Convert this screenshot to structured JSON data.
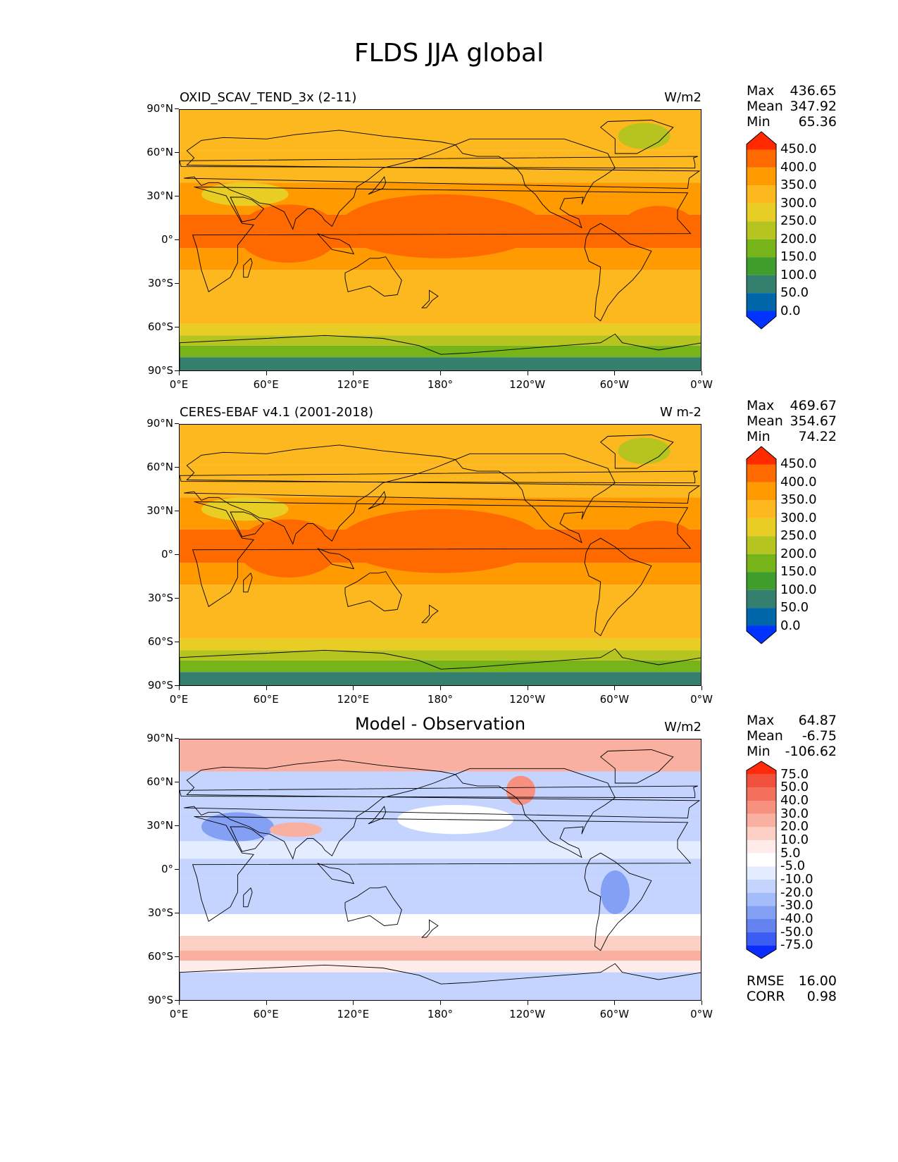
{
  "title": "FLDS JJA global",
  "panels": [
    {
      "left_label": "OXID_SCAV_TEND_3x (2-11)",
      "center_label": "",
      "units": "W/m2",
      "stats": [
        [
          "Max",
          "436.65"
        ],
        [
          "Mean",
          "347.92"
        ],
        [
          "Min",
          "65.36"
        ]
      ],
      "colorbar": {
        "labels": [
          "450.0",
          "400.0",
          "350.0",
          "300.0",
          "250.0",
          "200.0",
          "150.0",
          "100.0",
          "50.0",
          "0.0"
        ],
        "colors": [
          "#ff2a00",
          "#ff6a00",
          "#ff9a00",
          "#fdb71f",
          "#e8cd24",
          "#b6c41f",
          "#77b41a",
          "#3f9e2b",
          "#347f6d",
          "#0066aa",
          "#0033ff"
        ]
      }
    },
    {
      "left_label": "CERES-EBAF v4.1 (2001-2018)",
      "center_label": "",
      "units": "W m-2",
      "stats": [
        [
          "Max",
          "469.67"
        ],
        [
          "Mean",
          "354.67"
        ],
        [
          "Min",
          "74.22"
        ]
      ],
      "colorbar": {
        "labels": [
          "450.0",
          "400.0",
          "350.0",
          "300.0",
          "250.0",
          "200.0",
          "150.0",
          "100.0",
          "50.0",
          "0.0"
        ],
        "colors": [
          "#ff2a00",
          "#ff6a00",
          "#ff9a00",
          "#fdb71f",
          "#e8cd24",
          "#b6c41f",
          "#77b41a",
          "#3f9e2b",
          "#347f6d",
          "#0066aa",
          "#0033ff"
        ]
      }
    },
    {
      "left_label": "",
      "center_label": "Model - Observation",
      "units": "W/m2",
      "stats": [
        [
          "Max",
          "64.87"
        ],
        [
          "Mean",
          "-6.75"
        ],
        [
          "Min",
          "-106.62"
        ]
      ],
      "extra_stats": [
        [
          "RMSE",
          "16.00"
        ],
        [
          "CORR",
          "0.98"
        ]
      ],
      "colorbar": {
        "labels": [
          "75.0",
          "50.0",
          "40.0",
          "30.0",
          "20.0",
          "10.0",
          "5.0",
          "-5.0",
          "-10.0",
          "-20.0",
          "-30.0",
          "-40.0",
          "-50.0",
          "-75.0"
        ],
        "colors": [
          "#ff2a0a",
          "#f0503c",
          "#f4705c",
          "#f89080",
          "#fab0a0",
          "#fcd0c4",
          "#ffecea",
          "#ffffff",
          "#e4ecff",
          "#c4d4ff",
          "#a4bcfa",
          "#84a0f4",
          "#6482f0",
          "#3c5cf4",
          "#0a2cff"
        ]
      }
    }
  ],
  "lat_ticks": [
    "90°N",
    "60°N",
    "30°N",
    "0°",
    "30°S",
    "60°S",
    "90°S"
  ],
  "lon_ticks": [
    "0°E",
    "60°E",
    "120°E",
    "180°",
    "120°W",
    "60°W",
    "0°W"
  ]
}
